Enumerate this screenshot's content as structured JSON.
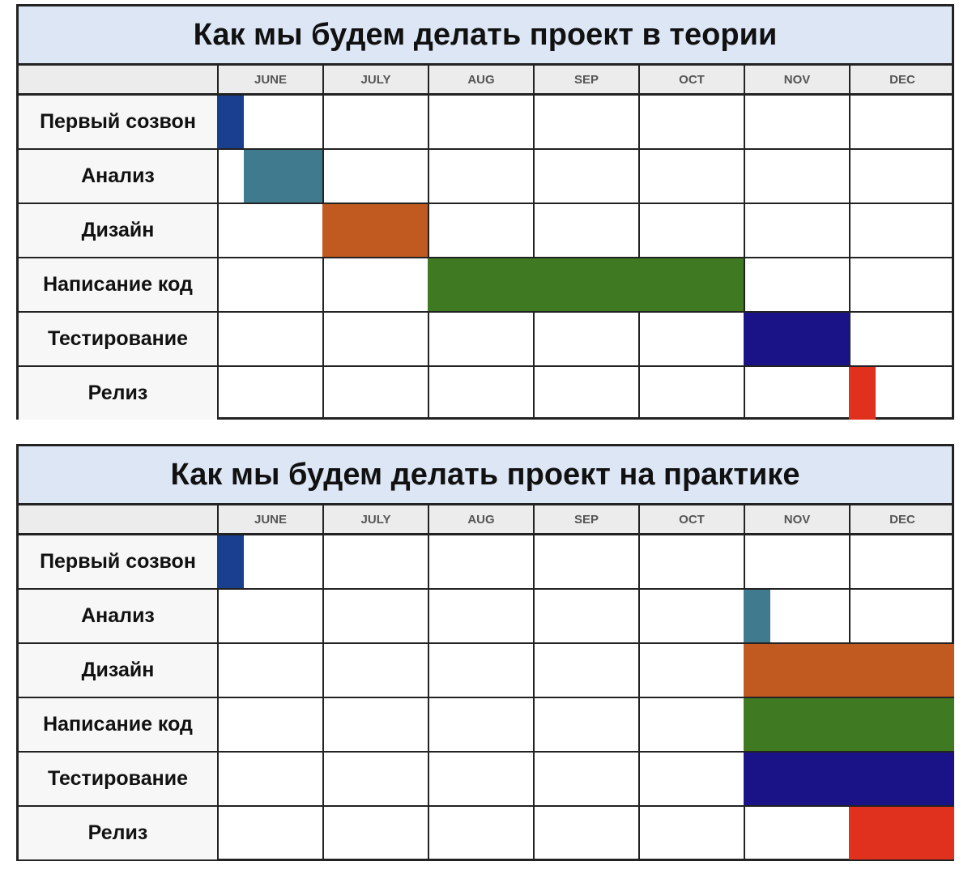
{
  "chart_data": [
    {
      "type": "gantt",
      "title": "Как мы будем делать проект в теории",
      "months": [
        "JUNE",
        "JULY",
        "AUG",
        "SEP",
        "OCT",
        "NOV",
        "DEC"
      ],
      "tasks": [
        {
          "label": "Первый созвон",
          "start": "JUNE",
          "start_frac": 0,
          "end": "JUNE",
          "end_frac": 0.25,
          "color": "#1a3f8f"
        },
        {
          "label": "Анализ",
          "start": "JUNE",
          "start_frac": 0.25,
          "end": "JUNE",
          "end_frac": 1,
          "color": "#3f7a8f"
        },
        {
          "label": "Дизайн",
          "start": "JULY",
          "start_frac": 0,
          "end": "JULY",
          "end_frac": 1,
          "color": "#c05a20"
        },
        {
          "label": "Написание код",
          "start": "AUG",
          "start_frac": 0,
          "end": "OCT",
          "end_frac": 1,
          "color": "#3f7a22"
        },
        {
          "label": "Тестирование",
          "start": "NOV",
          "start_frac": 0,
          "end": "NOV",
          "end_frac": 1,
          "color": "#1a1388"
        },
        {
          "label": "Релиз",
          "start": "DEC",
          "start_frac": 0,
          "end": "DEC",
          "end_frac": 0.25,
          "color": "#e0301e"
        }
      ]
    },
    {
      "type": "gantt",
      "title": "Как мы будем делать проект на практике",
      "months": [
        "JUNE",
        "JULY",
        "AUG",
        "SEP",
        "OCT",
        "NOV",
        "DEC"
      ],
      "tasks": [
        {
          "label": "Первый созвон",
          "start": "JUNE",
          "start_frac": 0,
          "end": "JUNE",
          "end_frac": 0.25,
          "color": "#1a3f8f"
        },
        {
          "label": "Анализ",
          "start": "NOV",
          "start_frac": 0,
          "end": "NOV",
          "end_frac": 0.25,
          "color": "#3f7a8f"
        },
        {
          "label": "Дизайн",
          "start": "NOV",
          "start_frac": 0,
          "end": "DEC",
          "end_frac": 1,
          "color": "#c05a20"
        },
        {
          "label": "Написание код",
          "start": "NOV",
          "start_frac": 0,
          "end": "DEC",
          "end_frac": 1,
          "color": "#3f7a22"
        },
        {
          "label": "Тестирование",
          "start": "NOV",
          "start_frac": 0,
          "end": "DEC",
          "end_frac": 1,
          "color": "#1a1388"
        },
        {
          "label": "Релиз",
          "start": "DEC",
          "start_frac": 0,
          "end": "DEC",
          "end_frac": 1,
          "color": "#e0301e"
        }
      ]
    }
  ]
}
